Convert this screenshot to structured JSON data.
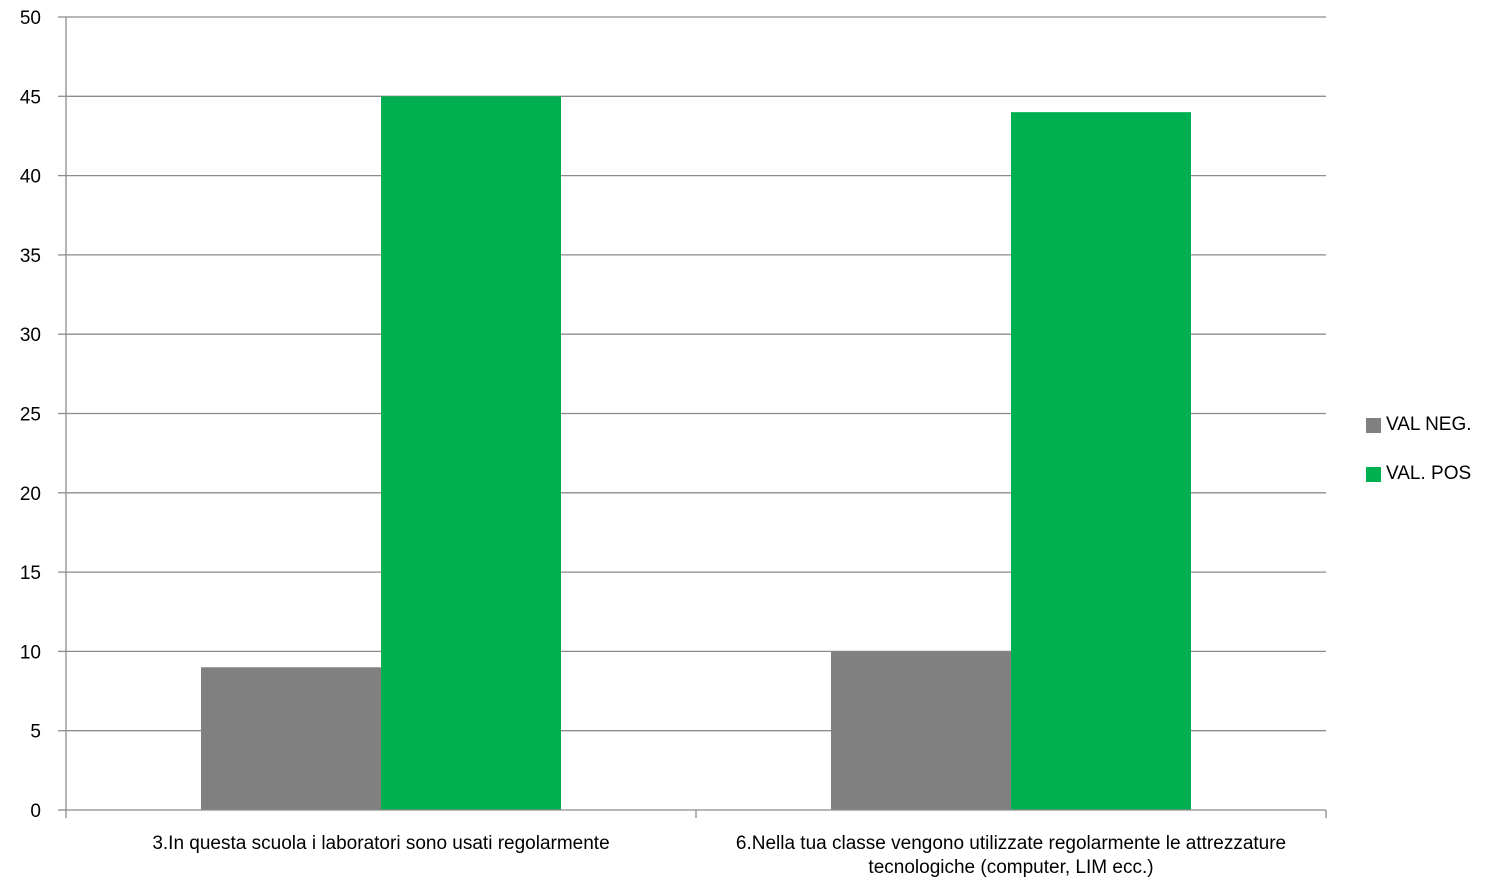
{
  "chart_data": {
    "type": "bar",
    "categories": [
      "3.In questa scuola i  laboratori sono usati regolarmente",
      "6.Nella tua  classe  vengono  utilizzate  regolarmente  le attrezzature tecnologiche (computer, LIM ecc.)"
    ],
    "series": [
      {
        "name": "VAL  NEG.",
        "values": [
          9,
          10
        ],
        "color": "#808080"
      },
      {
        "name": "VAL. POS",
        "values": [
          45,
          44
        ],
        "color": "#00b050"
      }
    ],
    "ylim": [
      0,
      50
    ],
    "yticks": [
      "0",
      "5",
      "10",
      "15",
      "20",
      "25",
      "30",
      "35",
      "40",
      "45",
      "50"
    ],
    "grid": true,
    "legend_position": "right",
    "title": "",
    "xlabel": "",
    "ylabel": ""
  }
}
